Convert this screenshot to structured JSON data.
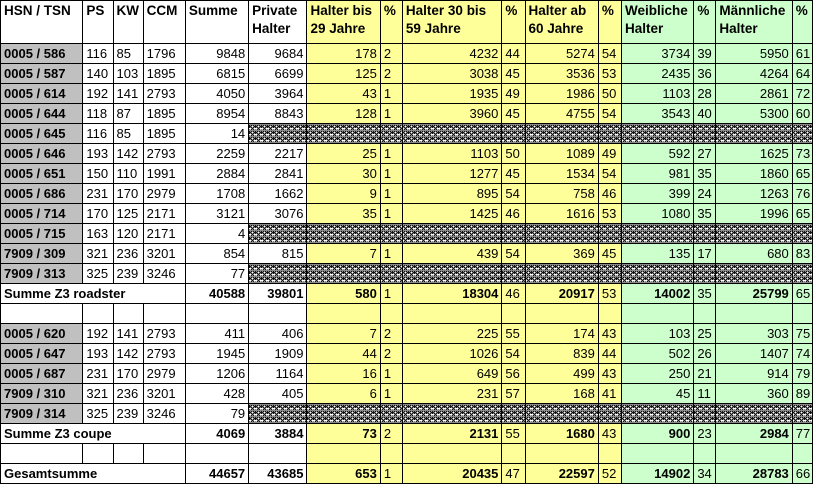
{
  "headers": [
    "HSN / TSN",
    "PS",
    "KW",
    "CCM",
    "Summe",
    "Private Halter",
    "Halter bis 29 Jahre",
    "%",
    "Halter 30 bis 59 Jahre",
    "%",
    "Halter ab 60 Jahre",
    "%",
    "Weibliche Halter",
    "%",
    "Männliche Halter",
    "%"
  ],
  "header_lines": [
    [
      "HSN / TSN",
      ""
    ],
    [
      "PS",
      ""
    ],
    [
      "KW",
      ""
    ],
    [
      "CCM",
      ""
    ],
    [
      "Summe",
      ""
    ],
    [
      "Private",
      "Halter"
    ],
    [
      "Halter bis",
      "29 Jahre"
    ],
    [
      "",
      "%"
    ],
    [
      "Halter 30 bis",
      "59 Jahre"
    ],
    [
      "",
      "%"
    ],
    [
      "Halter ab",
      "60 Jahre"
    ],
    [
      "",
      "%"
    ],
    [
      "Weibliche",
      "Halter"
    ],
    [
      "",
      "%"
    ],
    [
      "Männliche",
      "Halter"
    ],
    [
      "",
      "%"
    ]
  ],
  "roadster_rows": [
    {
      "hsn": "0005 / 586",
      "ps": "116",
      "kw": "85",
      "ccm": "1796",
      "summe": "9848",
      "privat": "9684",
      "h29": "178",
      "p29": "2",
      "h59": "4232",
      "p59": "44",
      "h60": "5274",
      "p60": "54",
      "w": "3734",
      "pw": "39",
      "m": "5950",
      "pm": "61",
      "hatched": false
    },
    {
      "hsn": "0005 / 587",
      "ps": "140",
      "kw": "103",
      "ccm": "1895",
      "summe": "6815",
      "privat": "6699",
      "h29": "125",
      "p29": "2",
      "h59": "3038",
      "p59": "45",
      "h60": "3536",
      "p60": "53",
      "w": "2435",
      "pw": "36",
      "m": "4264",
      "pm": "64",
      "hatched": false
    },
    {
      "hsn": "0005 / 614",
      "ps": "192",
      "kw": "141",
      "ccm": "2793",
      "summe": "4050",
      "privat": "3964",
      "h29": "43",
      "p29": "1",
      "h59": "1935",
      "p59": "49",
      "h60": "1986",
      "p60": "50",
      "w": "1103",
      "pw": "28",
      "m": "2861",
      "pm": "72",
      "hatched": false
    },
    {
      "hsn": "0005 / 644",
      "ps": "118",
      "kw": "87",
      "ccm": "1895",
      "summe": "8954",
      "privat": "8843",
      "h29": "128",
      "p29": "1",
      "h59": "3960",
      "p59": "45",
      "h60": "4755",
      "p60": "54",
      "w": "3543",
      "pw": "40",
      "m": "5300",
      "pm": "60",
      "hatched": false
    },
    {
      "hsn": "0005 / 645",
      "ps": "116",
      "kw": "85",
      "ccm": "1895",
      "summe": "14",
      "privat": "",
      "h29": "",
      "p29": "",
      "h59": "",
      "p59": "",
      "h60": "",
      "p60": "",
      "w": "",
      "pw": "",
      "m": "",
      "pm": "",
      "hatched": true
    },
    {
      "hsn": "0005 / 646",
      "ps": "193",
      "kw": "142",
      "ccm": "2793",
      "summe": "2259",
      "privat": "2217",
      "h29": "25",
      "p29": "1",
      "h59": "1103",
      "p59": "50",
      "h60": "1089",
      "p60": "49",
      "w": "592",
      "pw": "27",
      "m": "1625",
      "pm": "73",
      "hatched": false
    },
    {
      "hsn": "0005 / 651",
      "ps": "150",
      "kw": "110",
      "ccm": "1991",
      "summe": "2884",
      "privat": "2841",
      "h29": "30",
      "p29": "1",
      "h59": "1277",
      "p59": "45",
      "h60": "1534",
      "p60": "54",
      "w": "981",
      "pw": "35",
      "m": "1860",
      "pm": "65",
      "hatched": false
    },
    {
      "hsn": "0005 / 686",
      "ps": "231",
      "kw": "170",
      "ccm": "2979",
      "summe": "1708",
      "privat": "1662",
      "h29": "9",
      "p29": "1",
      "h59": "895",
      "p59": "54",
      "h60": "758",
      "p60": "46",
      "w": "399",
      "pw": "24",
      "m": "1263",
      "pm": "76",
      "hatched": false
    },
    {
      "hsn": "0005 / 714",
      "ps": "170",
      "kw": "125",
      "ccm": "2171",
      "summe": "3121",
      "privat": "3076",
      "h29": "35",
      "p29": "1",
      "h59": "1425",
      "p59": "46",
      "h60": "1616",
      "p60": "53",
      "w": "1080",
      "pw": "35",
      "m": "1996",
      "pm": "65",
      "hatched": false
    },
    {
      "hsn": "0005 / 715",
      "ps": "163",
      "kw": "120",
      "ccm": "2171",
      "summe": "4",
      "privat": "",
      "h29": "",
      "p29": "",
      "h59": "",
      "p59": "",
      "h60": "",
      "p60": "",
      "w": "",
      "pw": "",
      "m": "",
      "pm": "",
      "hatched": true
    },
    {
      "hsn": "7909 / 309",
      "ps": "321",
      "kw": "236",
      "ccm": "3201",
      "summe": "854",
      "privat": "815",
      "h29": "7",
      "p29": "1",
      "h59": "439",
      "p59": "54",
      "h60": "369",
      "p60": "45",
      "w": "135",
      "pw": "17",
      "m": "680",
      "pm": "83",
      "hatched": false
    },
    {
      "hsn": "7909 / 313",
      "ps": "325",
      "kw": "239",
      "ccm": "3246",
      "summe": "77",
      "privat": "",
      "h29": "",
      "p29": "",
      "h59": "",
      "p59": "",
      "h60": "",
      "p60": "",
      "w": "",
      "pw": "",
      "m": "",
      "pm": "",
      "hatched": true
    }
  ],
  "roadster_sum": {
    "label": "Summe Z3 roadster",
    "summe": "40588",
    "privat": "39801",
    "h29": "580",
    "p29": "1",
    "h59": "18304",
    "p59": "46",
    "h60": "20917",
    "p60": "53",
    "w": "14002",
    "pw": "35",
    "m": "25799",
    "pm": "65"
  },
  "coupe_rows": [
    {
      "hsn": "0005 / 620",
      "ps": "192",
      "kw": "141",
      "ccm": "2793",
      "summe": "411",
      "privat": "406",
      "h29": "7",
      "p29": "2",
      "h59": "225",
      "p59": "55",
      "h60": "174",
      "p60": "43",
      "w": "103",
      "pw": "25",
      "m": "303",
      "pm": "75",
      "hatched": false
    },
    {
      "hsn": "0005 / 647",
      "ps": "193",
      "kw": "142",
      "ccm": "2793",
      "summe": "1945",
      "privat": "1909",
      "h29": "44",
      "p29": "2",
      "h59": "1026",
      "p59": "54",
      "h60": "839",
      "p60": "44",
      "w": "502",
      "pw": "26",
      "m": "1407",
      "pm": "74",
      "hatched": false
    },
    {
      "hsn": "0005 / 687",
      "ps": "231",
      "kw": "170",
      "ccm": "2979",
      "summe": "1206",
      "privat": "1164",
      "h29": "16",
      "p29": "1",
      "h59": "649",
      "p59": "56",
      "h60": "499",
      "p60": "43",
      "w": "250",
      "pw": "21",
      "m": "914",
      "pm": "79",
      "hatched": false
    },
    {
      "hsn": "7909 / 310",
      "ps": "321",
      "kw": "236",
      "ccm": "3201",
      "summe": "428",
      "privat": "405",
      "h29": "6",
      "p29": "1",
      "h59": "231",
      "p59": "57",
      "h60": "168",
      "p60": "41",
      "w": "45",
      "pw": "11",
      "m": "360",
      "pm": "89",
      "hatched": false
    },
    {
      "hsn": "7909 / 314",
      "ps": "325",
      "kw": "239",
      "ccm": "3246",
      "summe": "79",
      "privat": "",
      "h29": "",
      "p29": "",
      "h59": "",
      "p59": "",
      "h60": "",
      "p60": "",
      "w": "",
      "pw": "",
      "m": "",
      "pm": "",
      "hatched": true
    }
  ],
  "coupe_sum": {
    "label": "Summe Z3 coupe",
    "summe": "4069",
    "privat": "3884",
    "h29": "73",
    "p29": "2",
    "h59": "2131",
    "p59": "55",
    "h60": "1680",
    "p60": "43",
    "w": "900",
    "pw": "23",
    "m": "2984",
    "pm": "77"
  },
  "total": {
    "label": "Gesamtsumme",
    "summe": "44657",
    "privat": "43685",
    "h29": "653",
    "p29": "1",
    "h59": "20435",
    "p59": "47",
    "h60": "22597",
    "p60": "52",
    "w": "14902",
    "pw": "34",
    "m": "28783",
    "pm": "66"
  },
  "colors": {
    "hsn_bg": "#c0c0c0",
    "age_bg": "#ffff99",
    "gender_bg": "#ccffcc"
  }
}
